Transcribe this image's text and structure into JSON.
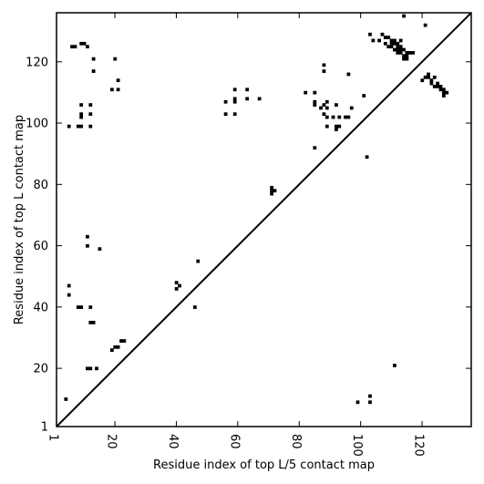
{
  "chart_data": {
    "type": "scatter",
    "title": "",
    "xlabel": "Residue index of top L/5 contact map",
    "ylabel": "Residue index of top L contact map",
    "xlim": [
      1,
      136
    ],
    "ylim": [
      1,
      136
    ],
    "xticks": [
      1,
      20,
      40,
      60,
      80,
      100,
      120
    ],
    "yticks": [
      1,
      20,
      40,
      60,
      80,
      100,
      120
    ],
    "diagonal": true,
    "grid": false,
    "marker_color": "#000000",
    "lower_triangle_points": [
      [
        4,
        10
      ],
      [
        111,
        21
      ],
      [
        103,
        9
      ],
      [
        103,
        11
      ],
      [
        99,
        9
      ],
      [
        102,
        89
      ],
      [
        120,
        114
      ]
    ],
    "upper_triangle_points": [
      [
        6,
        125
      ],
      [
        7,
        125
      ],
      [
        9,
        126
      ],
      [
        10,
        126
      ],
      [
        11,
        125
      ],
      [
        13,
        121
      ],
      [
        13,
        117
      ],
      [
        20,
        121
      ],
      [
        21,
        114
      ],
      [
        19,
        111
      ],
      [
        21,
        111
      ],
      [
        9,
        106
      ],
      [
        12,
        106
      ],
      [
        9,
        103
      ],
      [
        9,
        102
      ],
      [
        12,
        103
      ],
      [
        9,
        99
      ],
      [
        8,
        99
      ],
      [
        5,
        99
      ],
      [
        12,
        99
      ],
      [
        11,
        63
      ],
      [
        11,
        60
      ],
      [
        15,
        59
      ],
      [
        5,
        47
      ],
      [
        5,
        44
      ],
      [
        9,
        40
      ],
      [
        8,
        40
      ],
      [
        12,
        40
      ],
      [
        12,
        35
      ],
      [
        13,
        35
      ],
      [
        20,
        27
      ],
      [
        19,
        26
      ],
      [
        21,
        27
      ],
      [
        22,
        29
      ],
      [
        23,
        29
      ],
      [
        11,
        20
      ],
      [
        12,
        20
      ],
      [
        14,
        20
      ],
      [
        40,
        48
      ],
      [
        40,
        46
      ],
      [
        41,
        47
      ],
      [
        47,
        55
      ],
      [
        46,
        40
      ],
      [
        59,
        111
      ],
      [
        63,
        111
      ],
      [
        56,
        107
      ],
      [
        59,
        108
      ],
      [
        59,
        107
      ],
      [
        63,
        108
      ],
      [
        67,
        108
      ],
      [
        56,
        103
      ],
      [
        59,
        103
      ],
      [
        71,
        79
      ],
      [
        71,
        78
      ],
      [
        71,
        77
      ],
      [
        72,
        78
      ],
      [
        82,
        110
      ],
      [
        85,
        110
      ],
      [
        85,
        107
      ],
      [
        85,
        106
      ],
      [
        88,
        106
      ],
      [
        89,
        107
      ],
      [
        87,
        105
      ],
      [
        89,
        105
      ],
      [
        88,
        103
      ],
      [
        89,
        102
      ],
      [
        92,
        106
      ],
      [
        91,
        102
      ],
      [
        93,
        102
      ],
      [
        95,
        102
      ],
      [
        96,
        102
      ],
      [
        89,
        99
      ],
      [
        92,
        99
      ],
      [
        92,
        98
      ],
      [
        93,
        99
      ],
      [
        88,
        119
      ],
      [
        88,
        117
      ],
      [
        96,
        116
      ],
      [
        97,
        105
      ],
      [
        101,
        109
      ],
      [
        85,
        92
      ],
      [
        103,
        129
      ],
      [
        104,
        127
      ],
      [
        106,
        127
      ],
      [
        107,
        129
      ],
      [
        108,
        128
      ],
      [
        109,
        128
      ],
      [
        110,
        127
      ],
      [
        111,
        127
      ],
      [
        112,
        126
      ],
      [
        113,
        127
      ],
      [
        108,
        126
      ],
      [
        109,
        125
      ],
      [
        110,
        125
      ],
      [
        111,
        124
      ],
      [
        112,
        123
      ],
      [
        113,
        124
      ],
      [
        114,
        124
      ],
      [
        115,
        123
      ],
      [
        114,
        122
      ],
      [
        115,
        122
      ],
      [
        116,
        123
      ],
      [
        117,
        123
      ],
      [
        114,
        121
      ],
      [
        115,
        121
      ],
      [
        110,
        126
      ],
      [
        111,
        126
      ],
      [
        112,
        125
      ],
      [
        113,
        125
      ],
      [
        112,
        124
      ],
      [
        113,
        123
      ],
      [
        114,
        135
      ],
      [
        121,
        132
      ],
      [
        122,
        116
      ],
      [
        121,
        115
      ],
      [
        122,
        115
      ],
      [
        123,
        114
      ],
      [
        124,
        115
      ],
      [
        123,
        113
      ],
      [
        124,
        112
      ],
      [
        125,
        113
      ],
      [
        125,
        112
      ],
      [
        126,
        111
      ],
      [
        127,
        110
      ],
      [
        126,
        112
      ],
      [
        127,
        111
      ],
      [
        128,
        110
      ],
      [
        127,
        109
      ]
    ]
  }
}
